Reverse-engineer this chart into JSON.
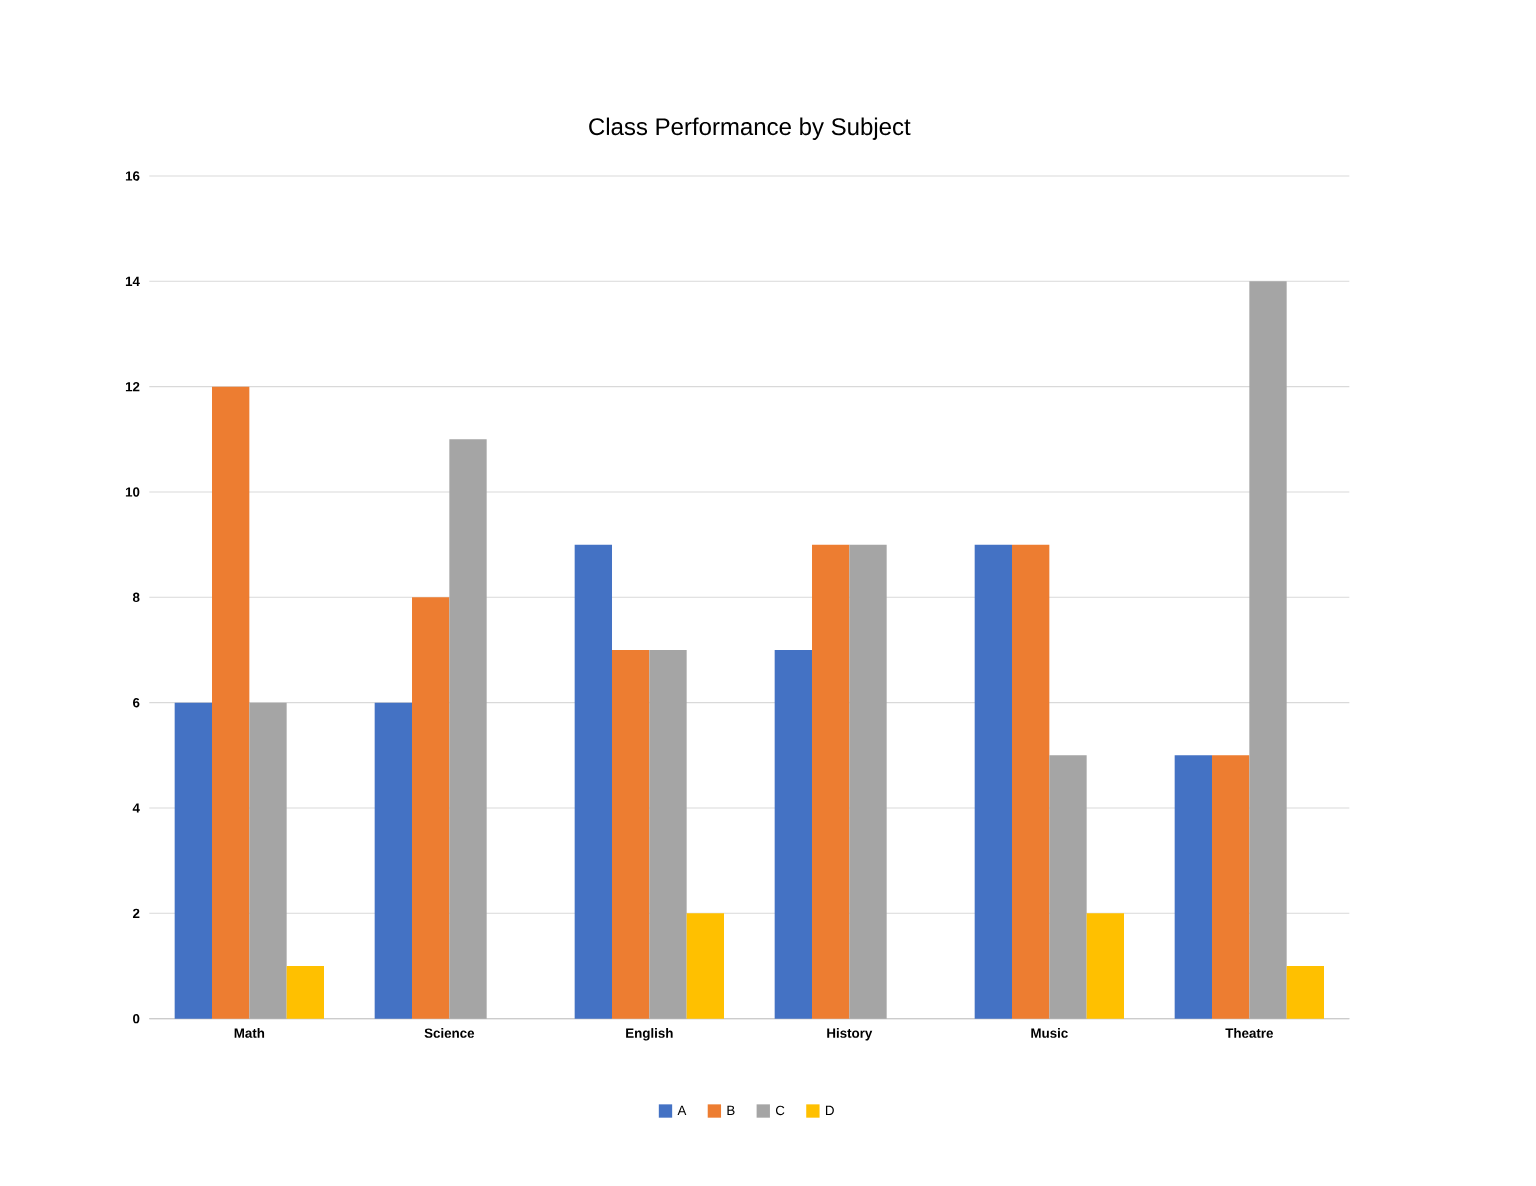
{
  "chart_data": {
    "type": "bar",
    "title": "Class Performance by Subject",
    "categories": [
      "Math",
      "Science",
      "English",
      "History",
      "Music",
      "Theatre"
    ],
    "series": [
      {
        "name": "A",
        "color": "#4472c4",
        "values": [
          6,
          6,
          9,
          7,
          9,
          5
        ]
      },
      {
        "name": "B",
        "color": "#ed7d31",
        "values": [
          12,
          8,
          7,
          9,
          9,
          5
        ]
      },
      {
        "name": "C",
        "color": "#a5a5a5",
        "values": [
          6,
          11,
          7,
          9,
          5,
          14
        ]
      },
      {
        "name": "D",
        "color": "#ffc000",
        "values": [
          1,
          null,
          2,
          null,
          2,
          1
        ]
      }
    ],
    "ylim": [
      0,
      16
    ],
    "yticks": [
      0,
      2,
      4,
      6,
      8,
      10,
      12,
      14,
      16
    ],
    "grid": "y",
    "legend": "bottom"
  }
}
